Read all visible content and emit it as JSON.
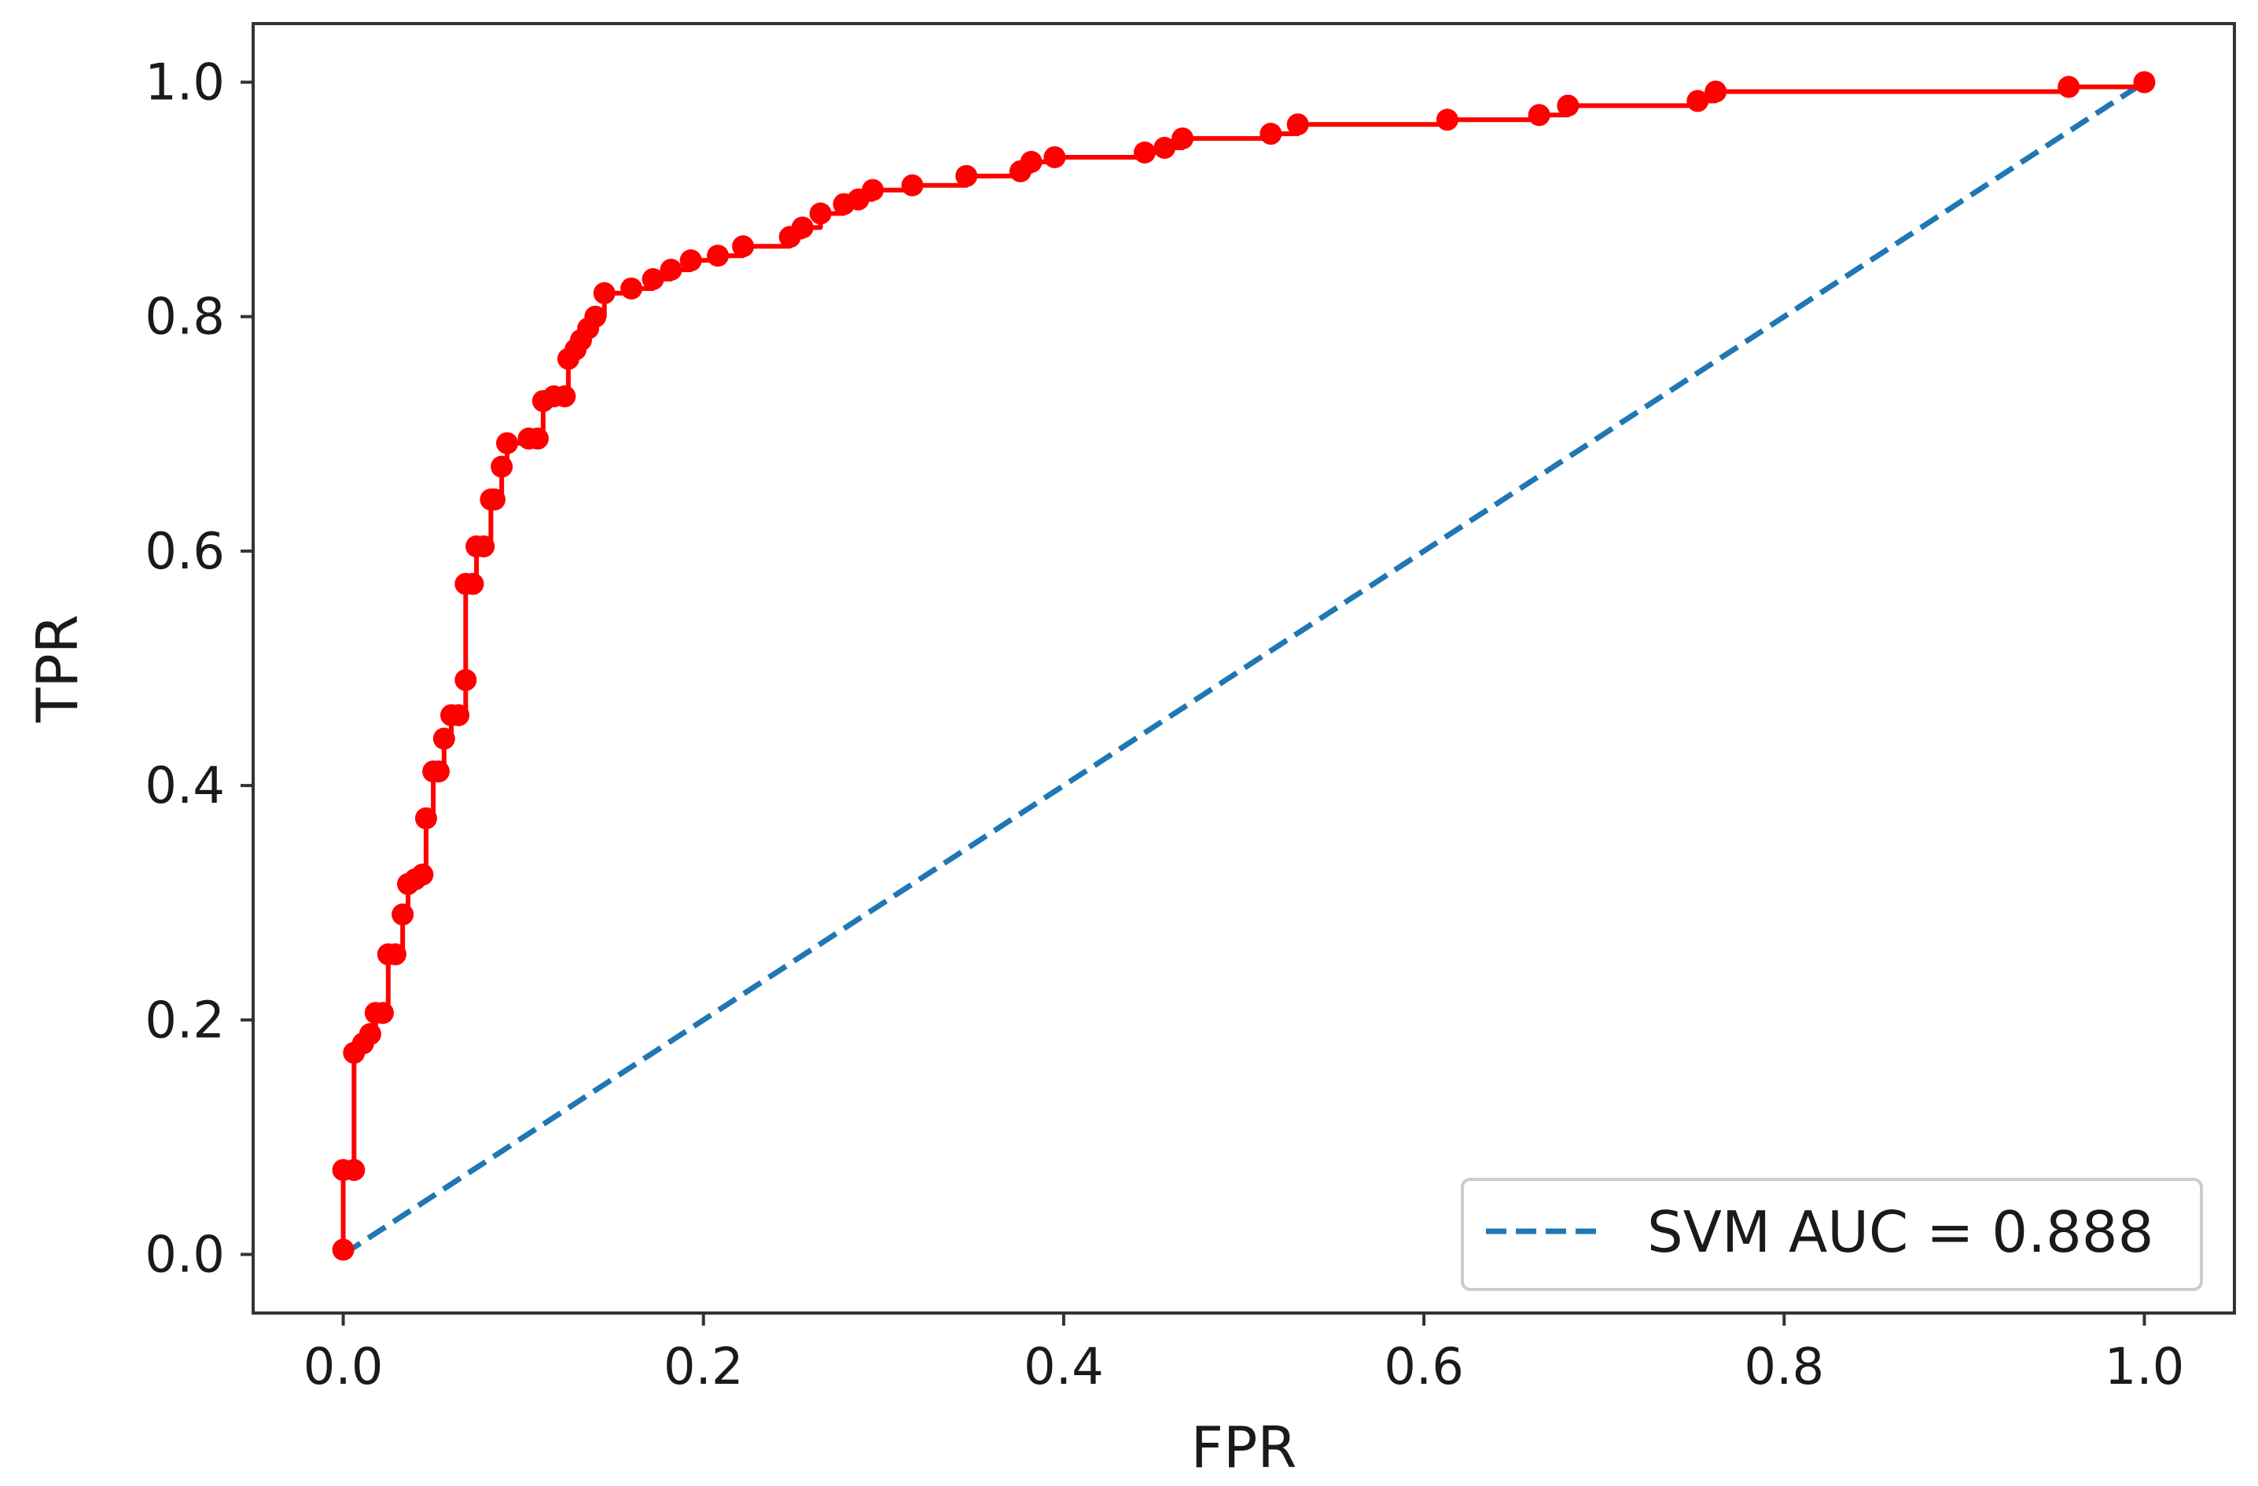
{
  "chart_data": {
    "type": "line",
    "title": "",
    "xlabel": "FPR",
    "ylabel": "TPR",
    "xlim": [
      -0.05,
      1.05
    ],
    "ylim": [
      -0.05,
      1.05
    ],
    "xticks": [
      "0.0",
      "0.2",
      "0.4",
      "0.6",
      "0.8",
      "1.0"
    ],
    "yticks": [
      "0.0",
      "0.2",
      "0.4",
      "0.6",
      "0.8",
      "1.0"
    ],
    "grid": false,
    "legend_position": "lower right",
    "series": [
      {
        "name": "",
        "style": "solid line with circle markers",
        "color": "#ff0000",
        "x": [
          0.0,
          0.0,
          0.006,
          0.006,
          0.011,
          0.015,
          0.018,
          0.022,
          0.025,
          0.029,
          0.033,
          0.036,
          0.04,
          0.044,
          0.046,
          0.05,
          0.053,
          0.056,
          0.06,
          0.064,
          0.068,
          0.068,
          0.072,
          0.074,
          0.078,
          0.082,
          0.084,
          0.088,
          0.091,
          0.103,
          0.108,
          0.111,
          0.117,
          0.123,
          0.125,
          0.129,
          0.132,
          0.136,
          0.14,
          0.145,
          0.16,
          0.172,
          0.182,
          0.193,
          0.208,
          0.222,
          0.248,
          0.255,
          0.265,
          0.278,
          0.286,
          0.294,
          0.316,
          0.346,
          0.376,
          0.382,
          0.395,
          0.445,
          0.456,
          0.466,
          0.515,
          0.53,
          0.613,
          0.664,
          0.68,
          0.752,
          0.762,
          0.958,
          1.0
        ],
        "y": [
          0.004,
          0.072,
          0.072,
          0.172,
          0.18,
          0.188,
          0.206,
          0.206,
          0.256,
          0.256,
          0.29,
          0.316,
          0.32,
          0.324,
          0.372,
          0.412,
          0.412,
          0.44,
          0.46,
          0.46,
          0.49,
          0.572,
          0.572,
          0.604,
          0.604,
          0.644,
          0.644,
          0.672,
          0.692,
          0.696,
          0.696,
          0.728,
          0.732,
          0.732,
          0.764,
          0.772,
          0.78,
          0.79,
          0.8,
          0.82,
          0.824,
          0.832,
          0.84,
          0.848,
          0.852,
          0.86,
          0.868,
          0.876,
          0.888,
          0.896,
          0.9,
          0.908,
          0.912,
          0.92,
          0.924,
          0.932,
          0.936,
          0.94,
          0.944,
          0.952,
          0.956,
          0.964,
          0.968,
          0.972,
          0.98,
          0.984,
          0.992,
          0.996,
          1.0
        ]
      },
      {
        "name": "SVM AUC = 0.888",
        "style": "dashed line",
        "color": "#1f77b4",
        "x": [
          0.0,
          1.0
        ],
        "y": [
          0.0,
          1.0
        ]
      }
    ],
    "legend": [
      "SVM AUC = 0.888"
    ]
  }
}
